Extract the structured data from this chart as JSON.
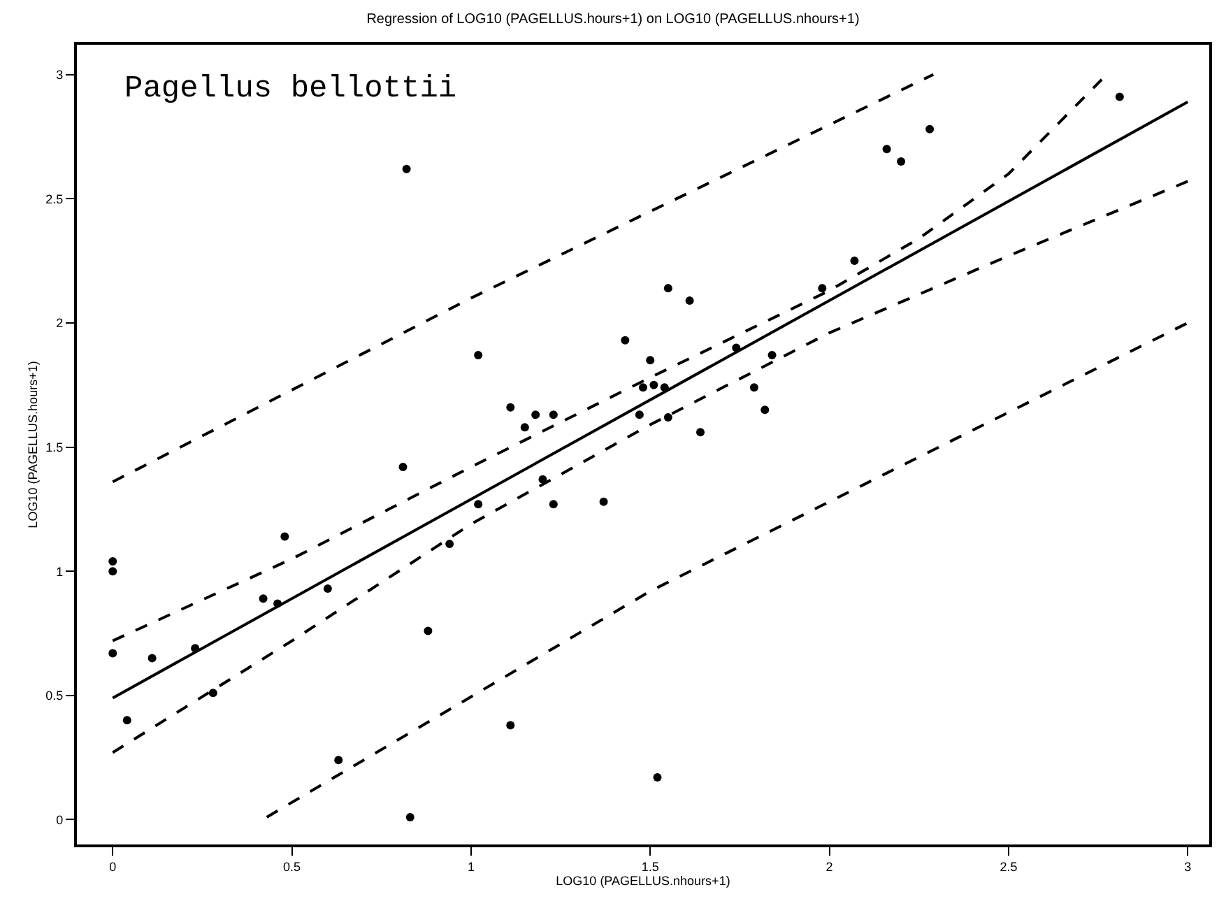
{
  "chart_data": {
    "type": "scatter",
    "title": "Regression of LOG10 (PAGELLUS.hours+1) on LOG10 (PAGELLUS.nhours+1)",
    "xlabel": "LOG10 (PAGELLUS.nhours+1)",
    "ylabel": "LOG10 (PAGELLUS.hours+1)",
    "annotations": [
      "Pagellus bellottii"
    ],
    "xlim": [
      -0.1,
      3.06
    ],
    "ylim": [
      -0.1,
      3.12
    ],
    "xticks": [
      0,
      0.5,
      1,
      1.5,
      2,
      2.5,
      3
    ],
    "yticks": [
      0,
      0.5,
      1,
      1.5,
      2,
      2.5,
      3
    ],
    "series": [
      {
        "marker": "circle",
        "color": "#000000",
        "x": [
          0,
          0,
          0,
          0.04,
          0.11,
          0.23,
          0.28,
          0.42,
          0.46,
          0.48,
          0.6,
          0.63,
          0.81,
          0.82,
          0.83,
          0.88,
          0.94,
          1.02,
          1.02,
          1.11,
          1.11,
          1.15,
          1.18,
          1.2,
          1.23,
          1.23,
          1.37,
          1.43,
          1.47,
          1.48,
          1.5,
          1.51,
          1.52,
          1.54,
          1.55,
          1.55,
          1.61,
          1.64,
          1.74,
          1.79,
          1.82,
          1.84,
          1.98,
          2.07,
          2.16,
          2.2,
          2.28,
          2.81
        ],
        "values": [
          1.04,
          1.0,
          0.67,
          0.4,
          0.65,
          0.69,
          0.51,
          0.89,
          0.87,
          1.14,
          0.93,
          0.24,
          1.42,
          2.62,
          0.01,
          0.76,
          1.11,
          1.27,
          1.87,
          1.66,
          0.38,
          1.58,
          1.63,
          1.37,
          1.27,
          1.63,
          1.28,
          1.93,
          1.63,
          1.74,
          1.85,
          1.75,
          0.17,
          1.74,
          2.14,
          1.62,
          2.09,
          1.56,
          1.9,
          1.74,
          1.65,
          1.87,
          2.14,
          2.25,
          2.7,
          2.65,
          2.78,
          2.91
        ]
      },
      {
        "type": "line",
        "marker": "none",
        "line_style": "solid",
        "color": "#000000",
        "x": [
          0,
          3
        ],
        "values": [
          0.49,
          2.89
        ]
      },
      {
        "type": "line",
        "marker": "none",
        "line_style": "dashed",
        "color": "#000000",
        "x": [
          0,
          0.5,
          1,
          1.5,
          2,
          2.25,
          2.5,
          2.76
        ],
        "values": [
          0.72,
          1.05,
          1.42,
          1.78,
          2.13,
          2.34,
          2.6,
          2.98
        ]
      },
      {
        "type": "line",
        "marker": "none",
        "line_style": "dashed",
        "color": "#000000",
        "x": [
          0,
          0.5,
          1,
          1.5,
          2,
          2.5,
          3
        ],
        "values": [
          0.27,
          0.72,
          1.19,
          1.59,
          1.96,
          2.27,
          2.57
        ]
      },
      {
        "type": "line",
        "marker": "none",
        "line_style": "dashed",
        "color": "#000000",
        "x": [
          0,
          1,
          2.29
        ],
        "values": [
          1.36,
          2.1,
          3.0
        ]
      },
      {
        "type": "line",
        "marker": "none",
        "line_style": "dashed",
        "color": "#000000",
        "x": [
          0.43,
          1.5,
          3
        ],
        "values": [
          0.01,
          0.92,
          2.0
        ]
      }
    ]
  }
}
